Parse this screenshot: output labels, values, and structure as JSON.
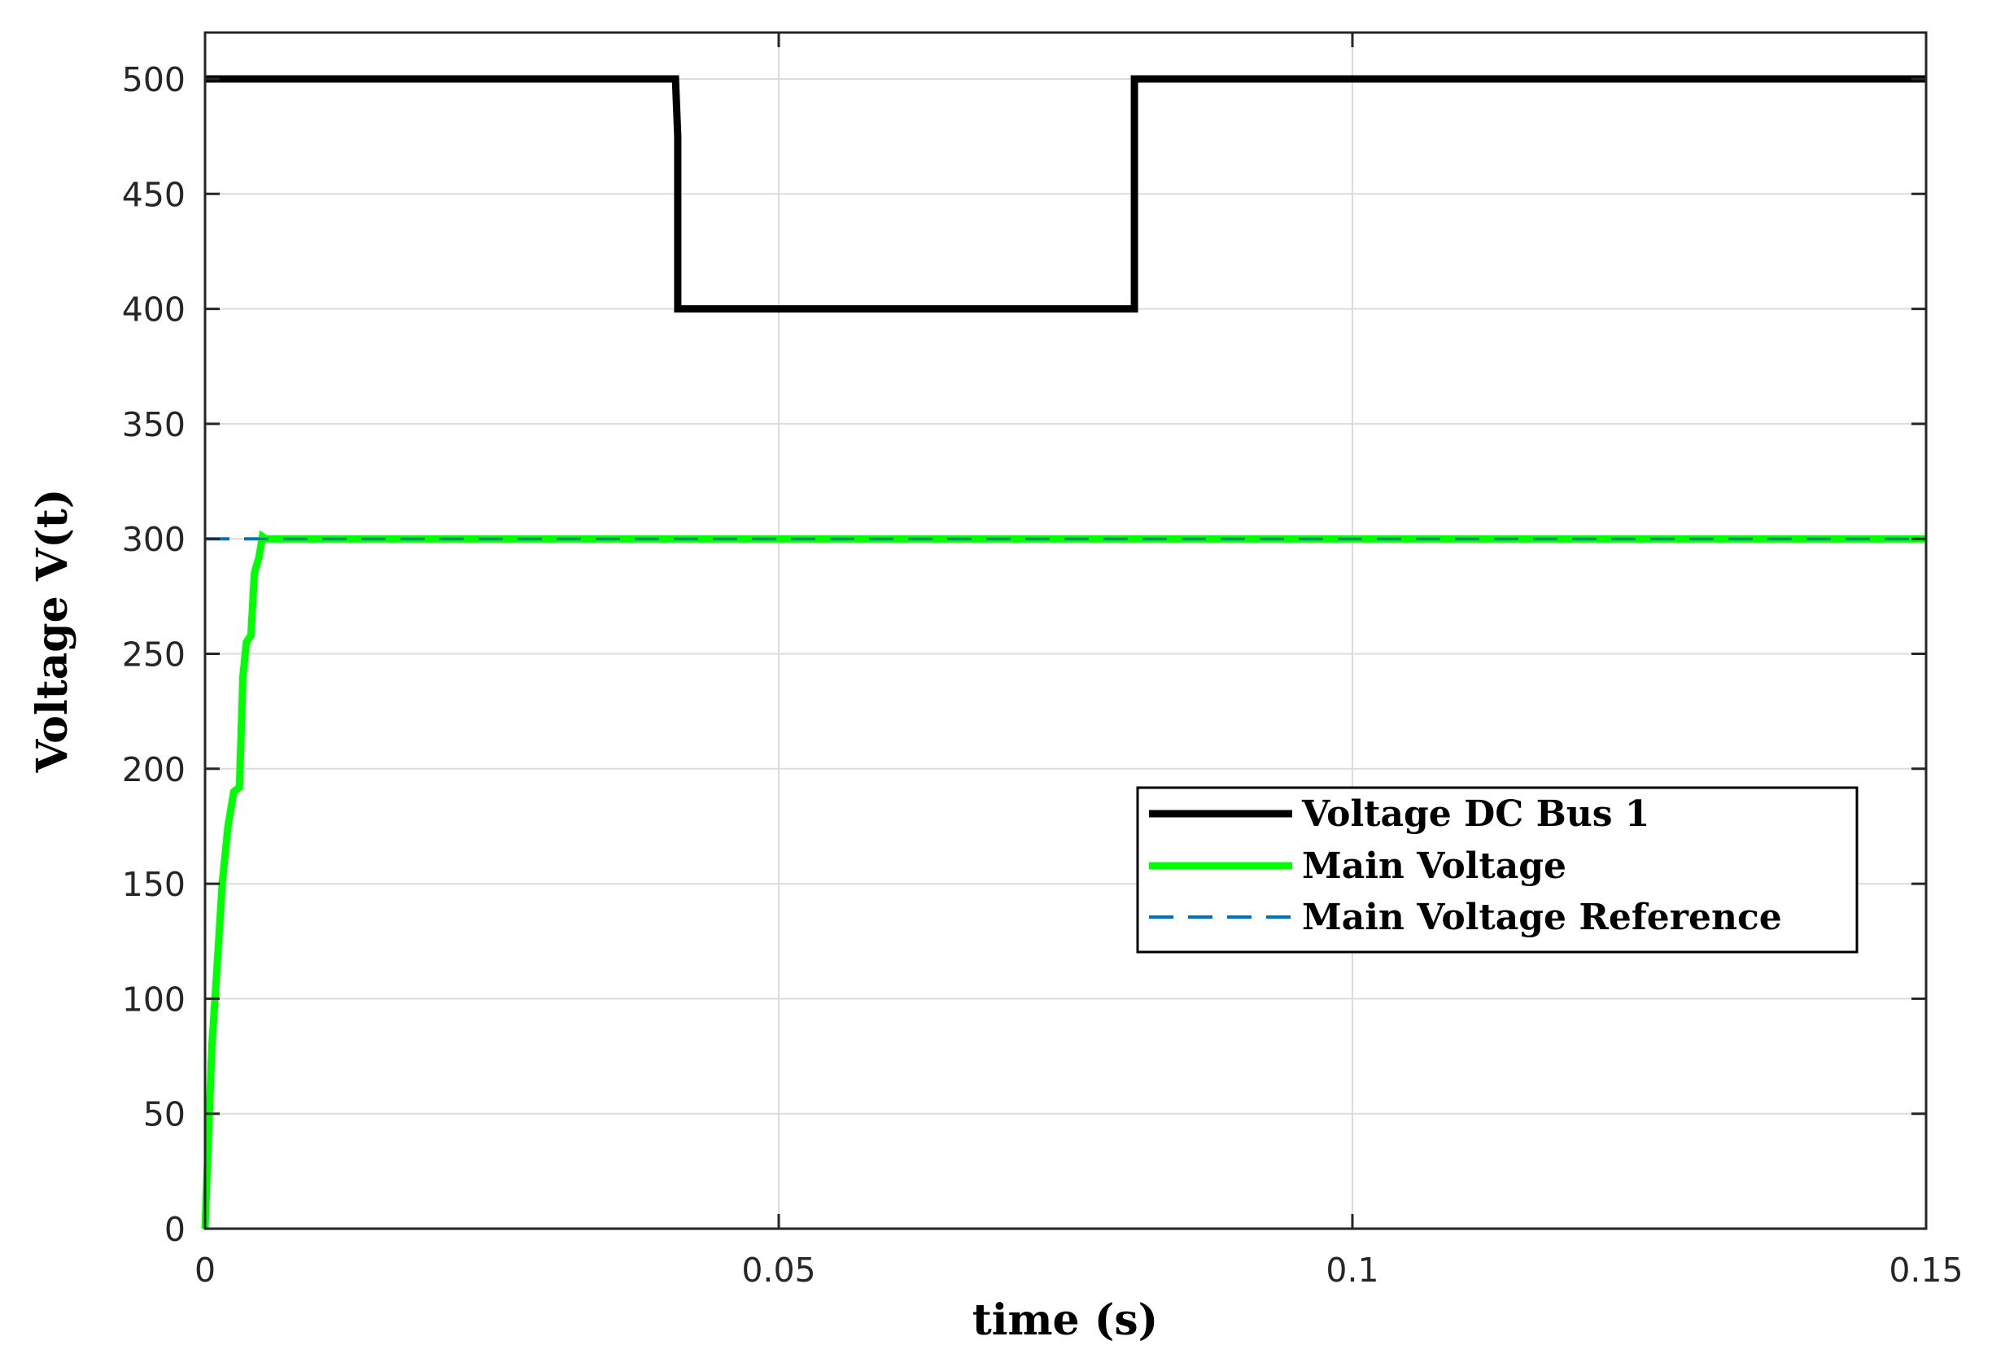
{
  "chart_data": {
    "type": "line",
    "title": "",
    "xlabel": "time (s)",
    "ylabel": "Voltage V(t)",
    "xlim": [
      0,
      0.15
    ],
    "ylim": [
      0,
      520
    ],
    "grid": true,
    "legend_position": "center-right",
    "x_ticks": [
      {
        "value": 0,
        "label": "0"
      },
      {
        "value": 0.05,
        "label": "0.05"
      },
      {
        "value": 0.1,
        "label": "0.1"
      },
      {
        "value": 0.15,
        "label": "0.15"
      }
    ],
    "y_ticks": [
      {
        "value": 0,
        "label": "0"
      },
      {
        "value": 50,
        "label": "50"
      },
      {
        "value": 100,
        "label": "100"
      },
      {
        "value": 150,
        "label": "150"
      },
      {
        "value": 200,
        "label": "200"
      },
      {
        "value": 250,
        "label": "250"
      },
      {
        "value": 300,
        "label": "300"
      },
      {
        "value": 350,
        "label": "350"
      },
      {
        "value": 400,
        "label": "400"
      },
      {
        "value": 450,
        "label": "450"
      },
      {
        "value": 500,
        "label": "500"
      }
    ],
    "series": [
      {
        "name": "Voltage DC Bus 1",
        "color": "#000000",
        "style": "solid",
        "x": [
          0,
          0.041,
          0.0412,
          0.0412,
          0.081,
          0.081,
          0.15
        ],
        "y": [
          500,
          500,
          475,
          400,
          400,
          500,
          500
        ]
      },
      {
        "name": "Main Voltage",
        "color": "#00ff00",
        "style": "solid",
        "x": [
          0,
          0.0003,
          0.0006,
          0.001,
          0.0015,
          0.002,
          0.0025,
          0.003,
          0.0033,
          0.0036,
          0.004,
          0.0043,
          0.0047,
          0.005,
          0.0053,
          0.006,
          0.01,
          0.03,
          0.05,
          0.07,
          0.09,
          0.11,
          0.13,
          0.15
        ],
        "y": [
          0,
          40,
          80,
          110,
          150,
          175,
          190,
          192,
          240,
          255,
          258,
          285,
          292,
          301,
          300,
          300,
          300,
          300,
          300,
          300,
          300,
          300,
          300,
          300
        ]
      },
      {
        "name": "Main Voltage Reference",
        "color": "#0072bd",
        "style": "dashed",
        "x": [
          0,
          0.15
        ],
        "y": [
          300,
          300
        ]
      }
    ]
  }
}
